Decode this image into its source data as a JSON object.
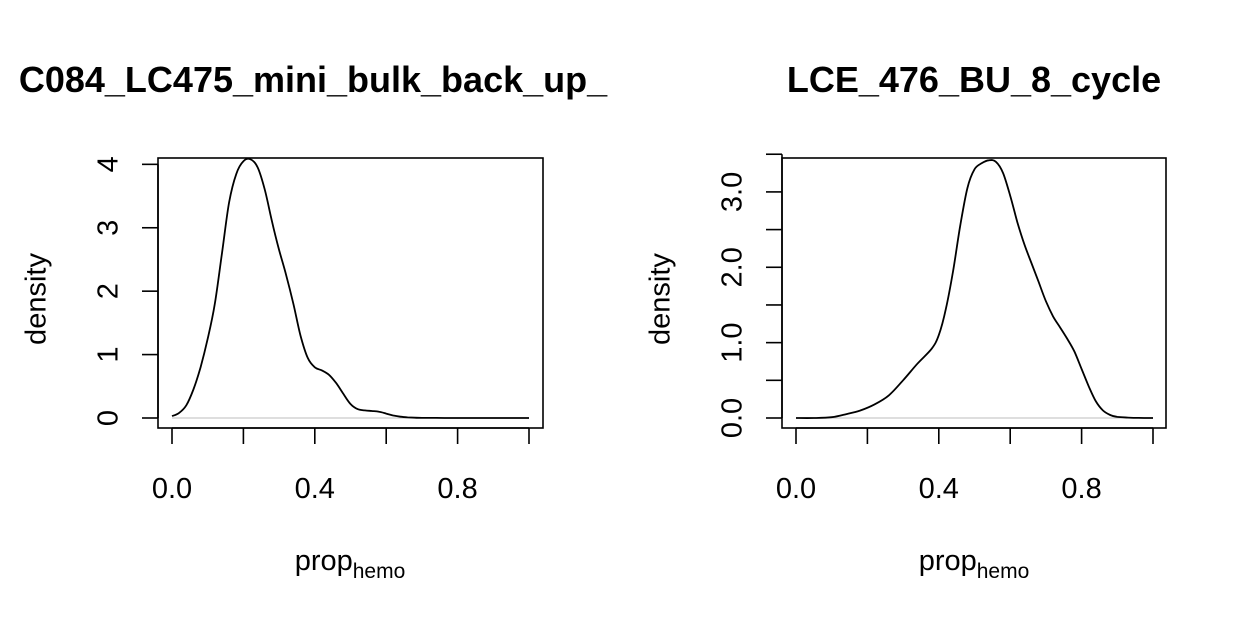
{
  "chart_data": [
    {
      "type": "line",
      "title": "C084_LC475_mini_bulk_back_up_",
      "xlabel": "prop",
      "xlabel_subscript": "hemo",
      "ylabel": "density",
      "xlim": [
        0,
        1
      ],
      "ylim": [
        0,
        4.1
      ],
      "x_ticks": [
        0,
        0.2,
        0.4,
        0.6,
        0.8,
        1.0
      ],
      "x_tick_labels": [
        {
          "value": 0.0,
          "label": "0.0"
        },
        {
          "value": 0.4,
          "label": "0.4"
        },
        {
          "value": 0.8,
          "label": "0.8"
        }
      ],
      "y_ticks": [
        0,
        1,
        2,
        3,
        4
      ],
      "y_tick_labels": [
        {
          "value": 0,
          "label": "0"
        },
        {
          "value": 1,
          "label": "1"
        },
        {
          "value": 2,
          "label": "2"
        },
        {
          "value": 3,
          "label": "3"
        },
        {
          "value": 4,
          "label": "4"
        }
      ],
      "series": [
        {
          "x": [
            0.0,
            0.02,
            0.04,
            0.06,
            0.08,
            0.1,
            0.12,
            0.14,
            0.16,
            0.18,
            0.2,
            0.22,
            0.24,
            0.26,
            0.28,
            0.3,
            0.32,
            0.34,
            0.36,
            0.38,
            0.4,
            0.42,
            0.44,
            0.46,
            0.48,
            0.5,
            0.52,
            0.54,
            0.56,
            0.58,
            0.6,
            0.62,
            0.64,
            0.66,
            0.68,
            0.7,
            0.74,
            0.8,
            0.9,
            1.0
          ],
          "y": [
            0.03,
            0.08,
            0.2,
            0.45,
            0.8,
            1.25,
            1.8,
            2.6,
            3.4,
            3.85,
            4.05,
            4.08,
            3.95,
            3.6,
            3.1,
            2.65,
            2.25,
            1.8,
            1.3,
            0.95,
            0.8,
            0.75,
            0.68,
            0.55,
            0.38,
            0.22,
            0.14,
            0.12,
            0.11,
            0.1,
            0.07,
            0.04,
            0.02,
            0.01,
            0.005,
            0.002,
            0.001,
            0.0,
            0.0,
            0.0
          ]
        }
      ]
    },
    {
      "type": "line",
      "title": "LCE_476_BU_8_cycle",
      "xlabel": "prop",
      "xlabel_subscript": "hemo",
      "ylabel": "density",
      "xlim": [
        0,
        1
      ],
      "ylim": [
        0,
        3.45
      ],
      "x_ticks": [
        0,
        0.2,
        0.4,
        0.6,
        0.8,
        1.0
      ],
      "x_tick_labels": [
        {
          "value": 0.0,
          "label": "0.0"
        },
        {
          "value": 0.4,
          "label": "0.4"
        },
        {
          "value": 0.8,
          "label": "0.8"
        }
      ],
      "y_ticks": [
        0,
        0.5,
        1.0,
        1.5,
        2.0,
        2.5,
        3.0,
        3.5
      ],
      "y_tick_labels": [
        {
          "value": 0.0,
          "label": "0.0"
        },
        {
          "value": 1.0,
          "label": "1.0"
        },
        {
          "value": 2.0,
          "label": "2.0"
        },
        {
          "value": 3.0,
          "label": "3.0"
        }
      ],
      "series": [
        {
          "x": [
            0.0,
            0.05,
            0.1,
            0.14,
            0.18,
            0.22,
            0.26,
            0.3,
            0.34,
            0.38,
            0.4,
            0.42,
            0.44,
            0.46,
            0.48,
            0.5,
            0.52,
            0.54,
            0.56,
            0.58,
            0.6,
            0.62,
            0.64,
            0.66,
            0.68,
            0.7,
            0.72,
            0.74,
            0.76,
            0.78,
            0.8,
            0.82,
            0.84,
            0.86,
            0.88,
            0.9,
            0.93,
            0.96,
            1.0
          ],
          "y": [
            0.0,
            0.0,
            0.01,
            0.05,
            0.1,
            0.18,
            0.3,
            0.5,
            0.72,
            0.92,
            1.1,
            1.45,
            1.95,
            2.55,
            3.05,
            3.3,
            3.38,
            3.42,
            3.4,
            3.25,
            2.95,
            2.6,
            2.3,
            2.05,
            1.8,
            1.55,
            1.35,
            1.2,
            1.05,
            0.88,
            0.65,
            0.42,
            0.22,
            0.1,
            0.04,
            0.015,
            0.005,
            0.001,
            0.0
          ]
        }
      ]
    }
  ]
}
